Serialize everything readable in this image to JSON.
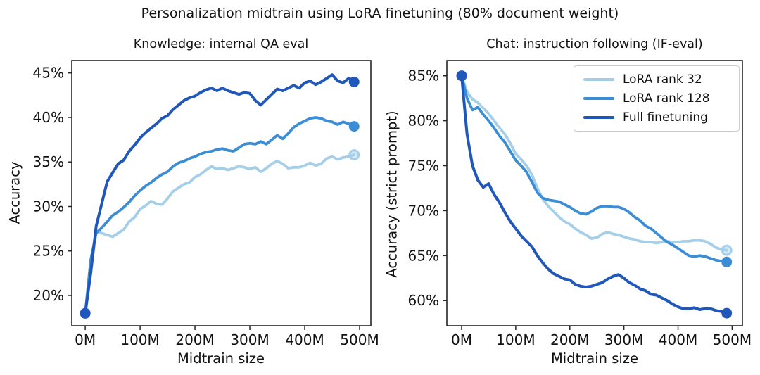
{
  "suptitle": "Personalization midtrain using LoRA finetuning (80% document weight)",
  "legend": {
    "position": "upper right of right subplot",
    "entries": [
      "LoRA rank 32",
      "LoRA rank 128",
      "Full finetuning"
    ]
  },
  "colors": {
    "lora_rank_32": "#a5cee9",
    "lora_rank_128": "#3b8ed5",
    "full_finetuning": "#2057ba"
  },
  "chart_data": [
    {
      "type": "line",
      "title": "Knowledge: internal QA eval",
      "xlabel": "Midtrain size",
      "ylabel": "Accuracy",
      "x_tick_labels": [
        "0M",
        "100M",
        "200M",
        "300M",
        "400M",
        "500M"
      ],
      "x_ticks": [
        0,
        100,
        200,
        300,
        400,
        500
      ],
      "y_tick_labels": [
        "20%",
        "25%",
        "30%",
        "35%",
        "40%",
        "45%"
      ],
      "y_ticks": [
        20,
        25,
        30,
        35,
        40,
        45
      ],
      "xlim": [
        -24.5,
        520.5
      ],
      "ylim": [
        16.6,
        46.4
      ],
      "grid": false,
      "x_unit": "millions of documents",
      "x_start": 0,
      "x_step": 10,
      "series": [
        {
          "name": "LoRA rank 32",
          "color": "#a5cee9",
          "end_marker": "ring",
          "values": [
            18.0,
            23.5,
            27.3,
            27.0,
            26.8,
            26.6,
            27.0,
            27.4,
            28.3,
            28.8,
            29.7,
            30.1,
            30.6,
            30.3,
            30.2,
            30.9,
            31.7,
            32.1,
            32.5,
            32.7,
            33.3,
            33.6,
            34.1,
            34.5,
            34.2,
            34.3,
            34.1,
            34.3,
            34.5,
            34.4,
            34.2,
            34.4,
            33.9,
            34.3,
            34.8,
            35.1,
            34.8,
            34.3,
            34.4,
            34.4,
            34.6,
            34.9,
            34.6,
            34.8,
            35.4,
            35.6,
            35.3,
            35.5,
            35.6,
            35.8
          ]
        },
        {
          "name": "LoRA rank 128",
          "color": "#3b8ed5",
          "end_marker": "solid",
          "values": [
            18.0,
            24.0,
            27.0,
            27.6,
            28.3,
            29.0,
            29.4,
            29.9,
            30.5,
            31.2,
            31.8,
            32.3,
            32.7,
            33.2,
            33.6,
            33.9,
            34.5,
            34.9,
            35.1,
            35.4,
            35.6,
            35.9,
            36.1,
            36.2,
            36.4,
            36.5,
            36.3,
            36.2,
            36.6,
            37.0,
            37.1,
            37.0,
            37.3,
            37.0,
            37.5,
            38.0,
            37.6,
            38.2,
            38.9,
            39.3,
            39.6,
            39.9,
            40.0,
            39.9,
            39.6,
            39.5,
            39.2,
            39.5,
            39.3,
            39.0
          ]
        },
        {
          "name": "Full finetuning",
          "color": "#2057ba",
          "end_marker": "solid",
          "values": [
            18.0,
            22.5,
            27.8,
            30.3,
            32.8,
            33.8,
            34.8,
            35.2,
            36.2,
            36.9,
            37.7,
            38.3,
            38.8,
            39.3,
            39.9,
            40.2,
            40.9,
            41.4,
            41.9,
            42.2,
            42.4,
            42.8,
            43.1,
            43.3,
            43.0,
            43.3,
            43.0,
            42.8,
            42.6,
            42.8,
            42.7,
            41.9,
            41.4,
            42.0,
            42.6,
            43.2,
            43.0,
            43.3,
            43.6,
            43.3,
            43.9,
            44.1,
            43.7,
            44.0,
            44.4,
            44.8,
            44.1,
            43.9,
            44.4,
            44.0
          ]
        }
      ]
    },
    {
      "type": "line",
      "title": "Chat: instruction following (IF-eval)",
      "xlabel": "Midtrain size",
      "ylabel": "Accuracy (strict prompt)",
      "x_tick_labels": [
        "0M",
        "100M",
        "200M",
        "300M",
        "400M",
        "500M"
      ],
      "x_ticks": [
        0,
        100,
        200,
        300,
        400,
        500
      ],
      "y_tick_labels": [
        "60%",
        "65%",
        "70%",
        "75%",
        "80%",
        "85%"
      ],
      "y_ticks": [
        60,
        65,
        70,
        75,
        80,
        85
      ],
      "xlim": [
        -27.3,
        519.0
      ],
      "ylim": [
        57.2,
        86.7
      ],
      "grid": false,
      "x_unit": "millions of documents",
      "x_start": 0,
      "x_step": 10,
      "has_legend": true,
      "series": [
        {
          "name": "LoRA rank 32",
          "color": "#a5cee9",
          "end_marker": "ring",
          "values": [
            85.0,
            83.2,
            82.4,
            82.0,
            81.4,
            80.8,
            80.0,
            79.2,
            78.5,
            77.5,
            76.3,
            75.7,
            75.0,
            74.0,
            72.5,
            71.3,
            70.5,
            69.9,
            69.3,
            68.8,
            68.5,
            68.0,
            67.6,
            67.3,
            66.9,
            67.0,
            67.4,
            67.6,
            67.4,
            67.3,
            67.1,
            66.9,
            66.8,
            66.6,
            66.5,
            66.5,
            66.4,
            66.5,
            66.6,
            66.5,
            66.5,
            66.6,
            66.6,
            66.7,
            66.7,
            66.6,
            66.3,
            65.9,
            65.7,
            65.6
          ]
        },
        {
          "name": "LoRA rank 128",
          "color": "#3b8ed5",
          "end_marker": "solid",
          "values": [
            85.0,
            82.5,
            81.2,
            81.5,
            80.7,
            80.0,
            79.2,
            78.3,
            77.6,
            76.6,
            75.6,
            75.0,
            74.3,
            73.2,
            72.0,
            71.4,
            71.2,
            71.1,
            71.0,
            70.7,
            70.4,
            70.0,
            69.7,
            69.6,
            69.9,
            70.3,
            70.5,
            70.5,
            70.4,
            70.4,
            70.2,
            69.8,
            69.3,
            68.9,
            68.3,
            68.0,
            67.5,
            67.0,
            66.5,
            66.2,
            65.8,
            65.4,
            65.0,
            64.9,
            65.0,
            64.9,
            64.7,
            64.5,
            64.4,
            64.3
          ]
        },
        {
          "name": "Full finetuning",
          "color": "#2057ba",
          "end_marker": "solid",
          "values": [
            85.0,
            78.5,
            75.0,
            73.4,
            72.6,
            73.0,
            71.8,
            70.9,
            69.8,
            68.8,
            68.0,
            67.2,
            66.6,
            66.0,
            65.0,
            64.2,
            63.5,
            63.0,
            62.7,
            62.4,
            62.3,
            61.8,
            61.6,
            61.5,
            61.6,
            61.8,
            62.0,
            62.4,
            62.7,
            62.9,
            62.5,
            62.0,
            61.7,
            61.3,
            61.1,
            60.7,
            60.6,
            60.3,
            60.0,
            59.6,
            59.3,
            59.1,
            59.1,
            59.2,
            59.0,
            59.1,
            59.1,
            58.9,
            58.8,
            58.6
          ]
        }
      ]
    }
  ]
}
